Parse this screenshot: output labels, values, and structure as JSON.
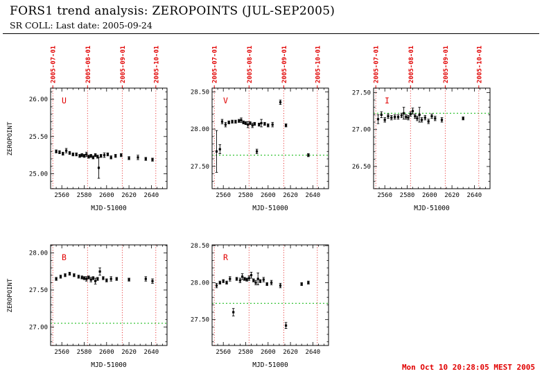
{
  "header": {
    "title": "FORS1 trend analysis: ZEROPOINTS (JUL-SEP2005)",
    "subtitle": "SR COLL: Last date: 2005-09-24"
  },
  "footer": {
    "timestamp": "Mon Oct 10 20:28:05 MEST 2005"
  },
  "colors": {
    "accent_red": "#e10000",
    "reference_green": "#00b400",
    "marker_black": "#000000"
  },
  "axes": {
    "xlabel": "MJD-51000",
    "ylabel": "ZEROPOINT",
    "xlim": [
      2550,
      2654
    ],
    "xticks": [
      2560,
      2580,
      2600,
      2620,
      2640
    ],
    "x_minor_step": 5,
    "month_lines": [
      2552,
      2583,
      2614,
      2644
    ],
    "month_labels": [
      "2005-07-01",
      "2005-08-01",
      "2005-09-01",
      "2005-10-01"
    ]
  },
  "chart_data": [
    {
      "type": "scatter",
      "band": "U",
      "month_labels_visible": true,
      "ylim": [
        24.8,
        26.15
      ],
      "yticks": [
        25.0,
        25.5,
        26.0
      ],
      "green_line": null,
      "points": [
        [
          2555,
          25.3,
          0.02
        ],
        [
          2558,
          25.29,
          0.02
        ],
        [
          2561,
          25.27,
          0.02
        ],
        [
          2564,
          25.31,
          0.03
        ],
        [
          2567,
          25.28,
          0.02
        ],
        [
          2570,
          25.26,
          0.02
        ],
        [
          2573,
          25.26,
          0.02
        ],
        [
          2576,
          25.24,
          0.02
        ],
        [
          2578,
          25.25,
          0.02
        ],
        [
          2580,
          25.24,
          0.02
        ],
        [
          2582,
          25.26,
          0.03
        ],
        [
          2584,
          25.23,
          0.02
        ],
        [
          2586,
          25.24,
          0.02
        ],
        [
          2588,
          25.22,
          0.02
        ],
        [
          2590,
          25.25,
          0.02
        ],
        [
          2592,
          25.23,
          0.02
        ],
        [
          2593,
          25.08,
          0.14
        ],
        [
          2595,
          25.24,
          0.02
        ],
        [
          2598,
          25.25,
          0.03
        ],
        [
          2601,
          25.26,
          0.02
        ],
        [
          2604,
          25.22,
          0.02
        ],
        [
          2608,
          25.24,
          0.02
        ],
        [
          2613,
          25.25,
          0.02
        ],
        [
          2620,
          25.21,
          0.02
        ],
        [
          2628,
          25.22,
          0.03
        ],
        [
          2635,
          25.2,
          0.02
        ],
        [
          2641,
          25.19,
          0.02
        ]
      ]
    },
    {
      "type": "scatter",
      "band": "V",
      "month_labels_visible": true,
      "ylim": [
        27.2,
        28.55
      ],
      "yticks": [
        27.5,
        28.0,
        28.5
      ],
      "green_line": 27.65,
      "points": [
        [
          2554,
          27.7,
          0.28
        ],
        [
          2557,
          27.73,
          0.06
        ],
        [
          2559,
          28.1,
          0.03
        ],
        [
          2562,
          28.06,
          0.03
        ],
        [
          2565,
          28.09,
          0.02
        ],
        [
          2568,
          28.1,
          0.02
        ],
        [
          2571,
          28.1,
          0.02
        ],
        [
          2574,
          28.11,
          0.02
        ],
        [
          2576,
          28.12,
          0.03
        ],
        [
          2578,
          28.09,
          0.02
        ],
        [
          2580,
          28.08,
          0.02
        ],
        [
          2582,
          28.06,
          0.04
        ],
        [
          2584,
          28.08,
          0.02
        ],
        [
          2586,
          28.05,
          0.03
        ],
        [
          2588,
          28.07,
          0.02
        ],
        [
          2590,
          27.7,
          0.03
        ],
        [
          2592,
          28.06,
          0.02
        ],
        [
          2594,
          28.08,
          0.05
        ],
        [
          2597,
          28.07,
          0.02
        ],
        [
          2600,
          28.05,
          0.02
        ],
        [
          2604,
          28.06,
          0.03
        ],
        [
          2611,
          28.36,
          0.03
        ],
        [
          2616,
          28.05,
          0.02
        ],
        [
          2636,
          27.65,
          0.02
        ]
      ]
    },
    {
      "type": "scatter",
      "band": "I",
      "month_labels_visible": true,
      "ylim": [
        26.2,
        27.56
      ],
      "yticks": [
        26.5,
        27.0,
        27.5
      ],
      "green_line": 27.22,
      "points": [
        [
          2554,
          27.14,
          0.06
        ],
        [
          2557,
          27.2,
          0.04
        ],
        [
          2560,
          27.13,
          0.03
        ],
        [
          2563,
          27.18,
          0.03
        ],
        [
          2566,
          27.16,
          0.03
        ],
        [
          2569,
          27.17,
          0.03
        ],
        [
          2572,
          27.17,
          0.03
        ],
        [
          2575,
          27.19,
          0.03
        ],
        [
          2577,
          27.22,
          0.08
        ],
        [
          2579,
          27.17,
          0.03
        ],
        [
          2581,
          27.16,
          0.03
        ],
        [
          2583,
          27.21,
          0.03
        ],
        [
          2585,
          27.25,
          0.04
        ],
        [
          2587,
          27.18,
          0.03
        ],
        [
          2589,
          27.15,
          0.03
        ],
        [
          2591,
          27.2,
          0.1
        ],
        [
          2593,
          27.13,
          0.03
        ],
        [
          2596,
          27.16,
          0.03
        ],
        [
          2599,
          27.11,
          0.03
        ],
        [
          2602,
          27.18,
          0.03
        ],
        [
          2605,
          27.15,
          0.03
        ],
        [
          2611,
          27.13,
          0.03
        ],
        [
          2630,
          27.15,
          0.02
        ]
      ]
    },
    {
      "type": "scatter",
      "band": "B",
      "month_labels_visible": false,
      "ylim": [
        26.75,
        28.11
      ],
      "yticks": [
        27.0,
        27.5,
        28.0
      ],
      "green_line": 27.05,
      "points": [
        [
          2555,
          27.65,
          0.02
        ],
        [
          2559,
          27.68,
          0.02
        ],
        [
          2563,
          27.7,
          0.02
        ],
        [
          2567,
          27.72,
          0.02
        ],
        [
          2571,
          27.7,
          0.02
        ],
        [
          2575,
          27.68,
          0.02
        ],
        [
          2578,
          27.67,
          0.02
        ],
        [
          2580,
          27.66,
          0.02
        ],
        [
          2582,
          27.65,
          0.03
        ],
        [
          2584,
          27.67,
          0.02
        ],
        [
          2586,
          27.64,
          0.03
        ],
        [
          2588,
          27.66,
          0.02
        ],
        [
          2590,
          27.62,
          0.04
        ],
        [
          2592,
          27.65,
          0.02
        ],
        [
          2594,
          27.75,
          0.05
        ],
        [
          2597,
          27.66,
          0.02
        ],
        [
          2600,
          27.63,
          0.02
        ],
        [
          2604,
          27.65,
          0.03
        ],
        [
          2609,
          27.65,
          0.02
        ],
        [
          2620,
          27.64,
          0.02
        ],
        [
          2635,
          27.65,
          0.03
        ],
        [
          2641,
          27.62,
          0.03
        ]
      ]
    },
    {
      "type": "scatter",
      "band": "R",
      "month_labels_visible": false,
      "ylim": [
        27.15,
        28.51
      ],
      "yticks": [
        27.5,
        28.0,
        28.5
      ],
      "green_line": 27.72,
      "points": [
        [
          2554,
          27.96,
          0.03
        ],
        [
          2557,
          28.0,
          0.02
        ],
        [
          2560,
          28.02,
          0.02
        ],
        [
          2563,
          28.0,
          0.02
        ],
        [
          2566,
          28.05,
          0.03
        ],
        [
          2569,
          27.6,
          0.05
        ],
        [
          2572,
          28.05,
          0.02
        ],
        [
          2575,
          28.03,
          0.03
        ],
        [
          2577,
          28.08,
          0.04
        ],
        [
          2579,
          28.05,
          0.02
        ],
        [
          2581,
          28.04,
          0.02
        ],
        [
          2583,
          28.06,
          0.03
        ],
        [
          2585,
          28.1,
          0.04
        ],
        [
          2587,
          28.03,
          0.02
        ],
        [
          2589,
          28.0,
          0.03
        ],
        [
          2591,
          28.05,
          0.08
        ],
        [
          2593,
          28.02,
          0.02
        ],
        [
          2596,
          28.04,
          0.03
        ],
        [
          2599,
          27.98,
          0.02
        ],
        [
          2603,
          28.0,
          0.03
        ],
        [
          2611,
          27.96,
          0.03
        ],
        [
          2616,
          27.42,
          0.04
        ],
        [
          2630,
          27.98,
          0.02
        ],
        [
          2636,
          28.0,
          0.02
        ]
      ]
    }
  ]
}
